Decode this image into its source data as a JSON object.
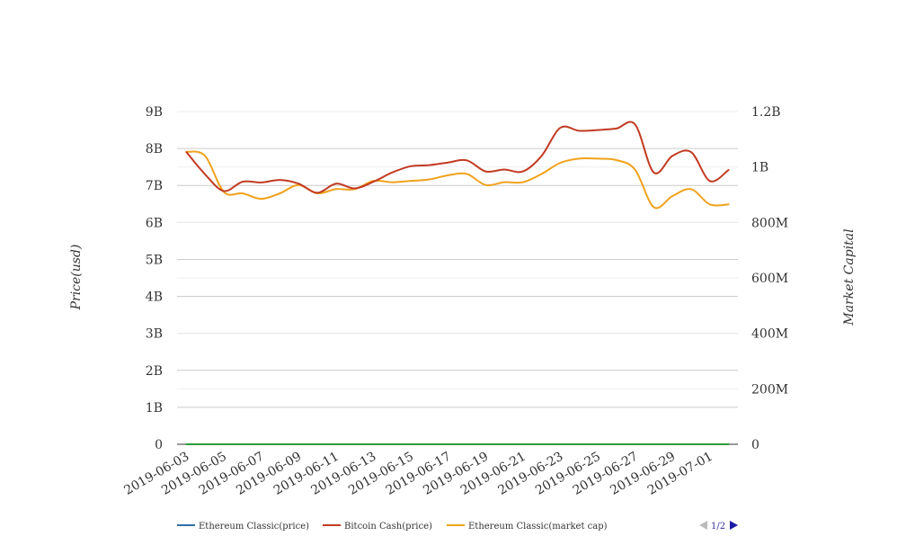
{
  "chart_data": {
    "type": "line",
    "x": [
      "2019-06-03",
      "2019-06-04",
      "2019-06-05",
      "2019-06-06",
      "2019-06-07",
      "2019-06-08",
      "2019-06-09",
      "2019-06-10",
      "2019-06-11",
      "2019-06-12",
      "2019-06-13",
      "2019-06-14",
      "2019-06-15",
      "2019-06-16",
      "2019-06-17",
      "2019-06-18",
      "2019-06-19",
      "2019-06-20",
      "2019-06-21",
      "2019-06-22",
      "2019-06-23",
      "2019-06-24",
      "2019-06-25",
      "2019-06-26",
      "2019-06-27",
      "2019-06-28",
      "2019-06-29",
      "2019-06-30",
      "2019-07-01",
      "2019-07-02"
    ],
    "x_tick_labels": [
      "2019-06-03",
      "2019-06-05",
      "2019-06-07",
      "2019-06-09",
      "2019-06-11",
      "2019-06-13",
      "2019-06-15",
      "2019-06-17",
      "2019-06-19",
      "2019-06-21",
      "2019-06-23",
      "2019-06-25",
      "2019-06-27",
      "2019-06-29",
      "2019-07-01"
    ],
    "y_left": {
      "label": "Price(usd)",
      "range": [
        0,
        9000000000
      ],
      "tick_values": [
        0,
        1000000000,
        2000000000,
        3000000000,
        4000000000,
        5000000000,
        6000000000,
        7000000000,
        8000000000,
        9000000000
      ],
      "tick_labels": [
        "0",
        "1B",
        "2B",
        "3B",
        "4B",
        "5B",
        "6B",
        "7B",
        "8B",
        "9B"
      ]
    },
    "y_right": {
      "label": "Market Capital",
      "range": [
        0,
        1200000000
      ],
      "tick_values": [
        0,
        200000000,
        400000000,
        600000000,
        800000000,
        1000000000,
        1200000000
      ],
      "tick_labels": [
        "0",
        "200M",
        "400M",
        "600M",
        "800M",
        "1B",
        "1.2B"
      ]
    },
    "series": [
      {
        "name": "Ethereum Classic(price)",
        "axis": "left",
        "color": "#2f6fa8",
        "values": [
          7.5,
          7.5,
          7.4,
          7.3,
          7.2,
          7.1,
          7.0,
          6.9,
          6.8,
          6.7,
          6.6,
          6.6,
          6.5,
          6.5,
          6.5,
          6.4,
          6.3,
          6.2,
          6.1,
          6.2,
          6.3,
          6.3,
          6.2,
          6.1,
          5.9,
          5.6,
          5.6,
          5.7,
          5.6,
          5.5
        ]
      },
      {
        "name": "Bitcoin Cash(price)",
        "axis": "left",
        "color": "#c23b22",
        "values": [
          7900000000,
          7300000000,
          6850000000,
          7100000000,
          7080000000,
          7150000000,
          7050000000,
          6800000000,
          7050000000,
          6920000000,
          7100000000,
          7350000000,
          7520000000,
          7550000000,
          7620000000,
          7680000000,
          7380000000,
          7430000000,
          7380000000,
          7800000000,
          8560000000,
          8480000000,
          8500000000,
          8540000000,
          8650000000,
          7350000000,
          7800000000,
          7900000000,
          7120000000,
          7420000000
        ]
      },
      {
        "name": "Ethereum Classic(market cap)",
        "axis": "right",
        "color": "#f0a21c",
        "values": [
          1055000000,
          1040000000,
          910000000,
          905000000,
          885000000,
          905000000,
          935000000,
          905000000,
          920000000,
          920000000,
          950000000,
          945000000,
          950000000,
          955000000,
          970000000,
          975000000,
          935000000,
          945000000,
          945000000,
          975000000,
          1015000000,
          1030000000,
          1030000000,
          1025000000,
          990000000,
          855000000,
          895000000,
          920000000,
          865000000,
          865000000
        ]
      },
      {
        "name": "",
        "axis": "right",
        "color": "#2e9e3b",
        "values": [
          2,
          2,
          2,
          2,
          2,
          2,
          2,
          2,
          2,
          2,
          2,
          2,
          2,
          2,
          2,
          2,
          2,
          2,
          2,
          2,
          2,
          2,
          2,
          2,
          2,
          2,
          2,
          2,
          2,
          2
        ]
      }
    ],
    "legend": {
      "placement": "bottom",
      "entries": [
        "Ethereum Classic(price)",
        "Bitcoin Cash(price)",
        "Ethereum Classic(market cap)"
      ],
      "page": "1/2"
    },
    "grid": true
  }
}
